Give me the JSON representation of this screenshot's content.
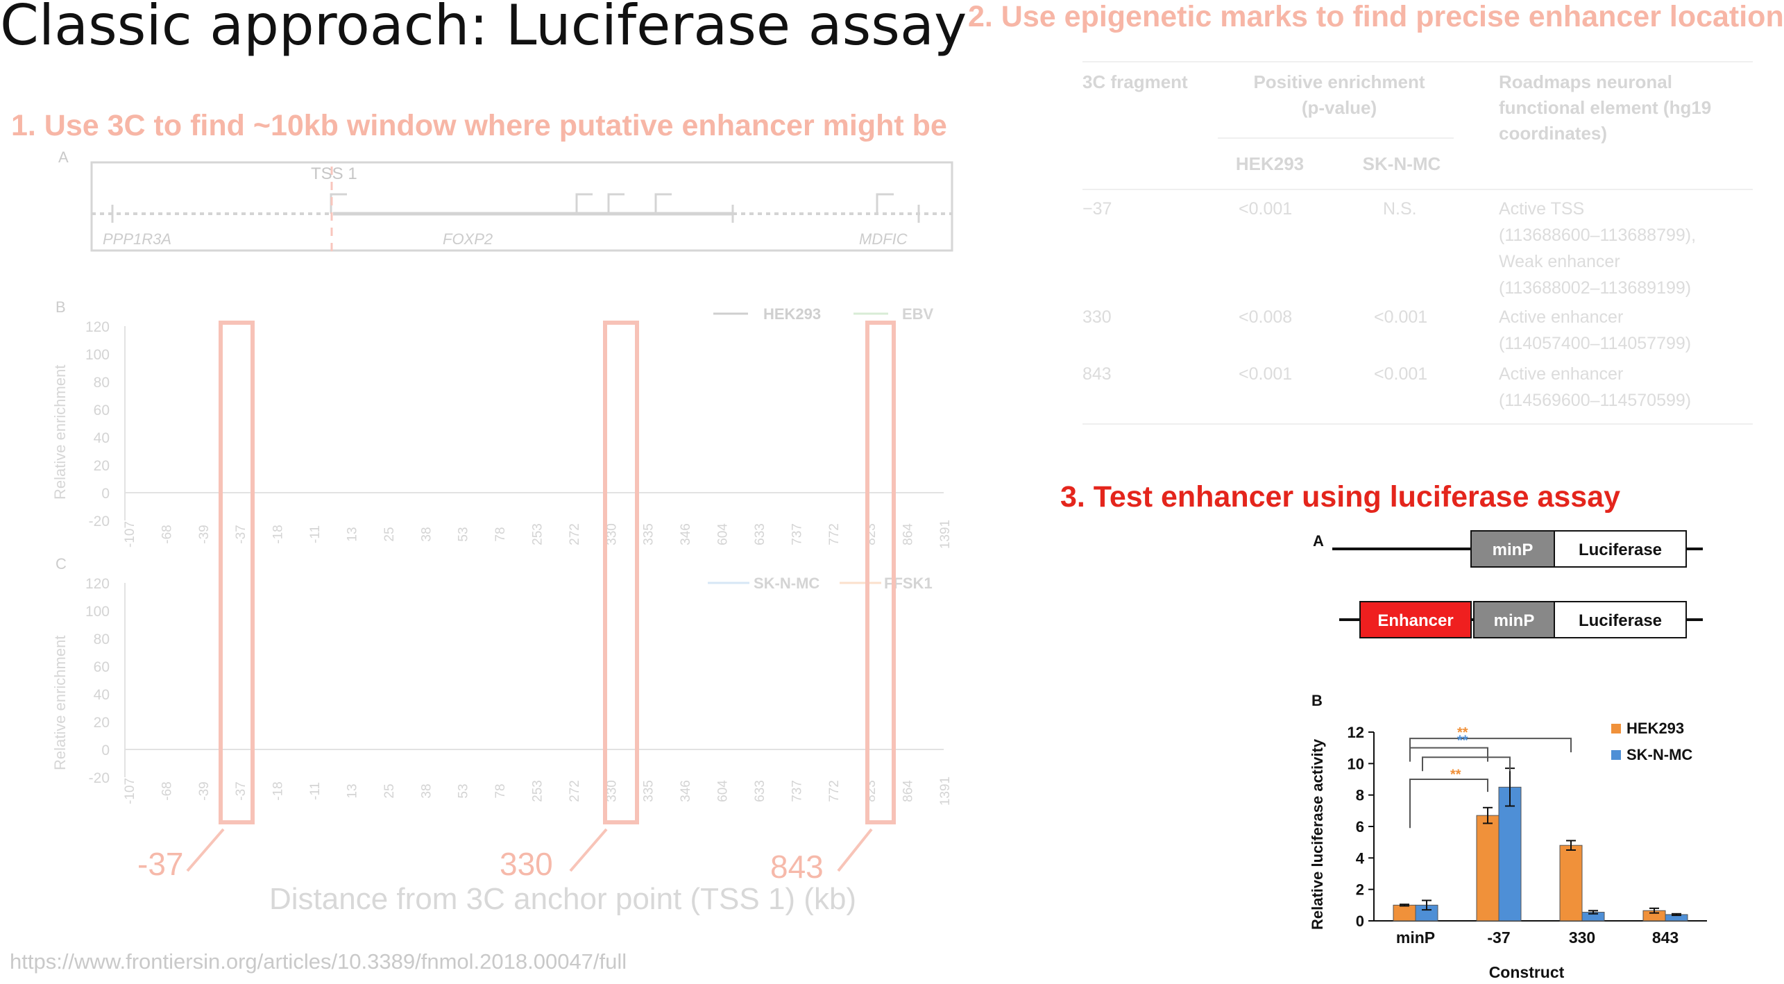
{
  "slide": {
    "title": "Classic approach: Luciferase assay",
    "step1": "1. Use 3C to find ~10kb window where putative enhancer might be",
    "step2": "2. Use epigenetic marks to find precise enhancer location",
    "step3": "3. Test enhancer using luciferase assay",
    "footer": "https://www.frontiersin.org/articles/10.3389/fnmol.2018.00047/full",
    "xaxis_label": "Distance from 3C anchor point (TSS 1) (kb)",
    "callouts": [
      "-37",
      "330",
      "843"
    ]
  },
  "locus": {
    "panel": "A",
    "tss_label": "TSS 1",
    "genes": [
      "PPP1R3A",
      "FOXP2",
      "MDFIC"
    ]
  },
  "enrichment": {
    "ylabel": "Relative enrichment",
    "yticks": [
      "120",
      "100",
      "80",
      "60",
      "40",
      "20",
      "0",
      "-20"
    ],
    "xticks": [
      "-107",
      "-68",
      "-39",
      "-37",
      "-18",
      "-11",
      "13",
      "25",
      "38",
      "53",
      "78",
      "253",
      "272",
      "330",
      "335",
      "346",
      "604",
      "633",
      "737",
      "772",
      "823",
      "864",
      "1391"
    ],
    "panelB": {
      "label": "B",
      "legend": [
        "HEK293",
        "EBV"
      ]
    },
    "panelC": {
      "label": "C",
      "legend": [
        "SK-N-MC",
        "FFSK1"
      ]
    }
  },
  "table": {
    "headers": {
      "fragment": "3C fragment",
      "enrichment": "Positive enrichment",
      "pvalue": "(p-value)",
      "roadmap": "Roadmaps neuronal functional element (hg19 coordinates)",
      "hek": "HEK293",
      "sknmc": "SK-N-MC"
    },
    "rows": [
      {
        "fragment": "−37",
        "hek": "<0.001",
        "sknmc": "N.S.",
        "element": [
          "Active TSS",
          "(113688600–113688799),",
          "Weak enhancer",
          "(113688002–113689199)"
        ]
      },
      {
        "fragment": "330",
        "hek": "<0.008",
        "sknmc": "<0.001",
        "element": [
          "Active enhancer",
          "(114057400–114057799)"
        ]
      },
      {
        "fragment": "843",
        "hek": "<0.001",
        "sknmc": "<0.001",
        "element": [
          "Active enhancer",
          "(114569600–114570599)"
        ]
      }
    ]
  },
  "constructs": {
    "panel": "A",
    "minp": "minP",
    "luciferase": "Luciferase",
    "enhancer": "Enhancer"
  },
  "chart_data": {
    "type": "bar",
    "panel_label": "B",
    "categories": [
      "minP",
      "-37",
      "330",
      "843"
    ],
    "series": [
      {
        "name": "HEK293",
        "values": [
          1.0,
          6.7,
          4.8,
          0.65
        ],
        "errors": [
          0.05,
          0.5,
          0.3,
          0.15
        ],
        "color": "#f0913a"
      },
      {
        "name": "SK-N-MC",
        "values": [
          1.0,
          8.5,
          0.55,
          0.4
        ],
        "errors": [
          0.3,
          1.2,
          0.1,
          0.05
        ],
        "color": "#4e8fd6"
      }
    ],
    "xlabel": "Construct",
    "ylabel": "Relative luciferase activity",
    "ylim": [
      0,
      12
    ],
    "yticks": [
      0,
      2,
      4,
      6,
      8,
      10,
      12
    ],
    "significance": "**",
    "legend_position": "top-right"
  }
}
